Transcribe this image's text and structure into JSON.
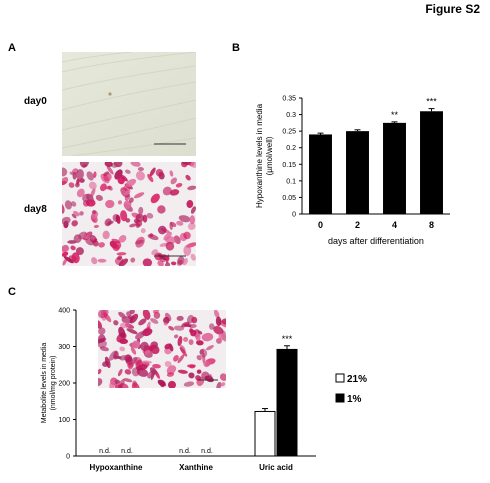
{
  "figure_title": "Figure S2",
  "panels": {
    "A": {
      "letter": "A",
      "images": [
        {
          "label": "day0",
          "description": "light microscopy of undifferentiated fibroblast-like cells"
        },
        {
          "label": "day8",
          "description": "oil red O stained differentiated adipocytes"
        }
      ]
    },
    "B": {
      "letter": "B"
    },
    "C": {
      "letter": "C",
      "inset": "oil red O stained cells"
    }
  },
  "chart_data": [
    {
      "panel": "B",
      "type": "bar",
      "categories": [
        "0",
        "2",
        "4",
        "8"
      ],
      "values": [
        0.24,
        0.25,
        0.275,
        0.31
      ],
      "errors": [
        0.004,
        0.004,
        0.003,
        0.008
      ],
      "annotations": [
        "",
        "",
        "**",
        "***"
      ],
      "xlabel": "days after differentiation",
      "ylabel": "Hypoxanthine levels in media\n(µmol/well)",
      "ylim": [
        0,
        0.35
      ],
      "yticks": [
        "0",
        "0.05",
        "0.1",
        "0.15",
        "0.2",
        "0.25",
        "0.3",
        "0.35"
      ],
      "bar_color": "#000000",
      "grid": false
    },
    {
      "panel": "C",
      "type": "bar",
      "categories": [
        "Hypoxanthine",
        "Xanthine",
        "Uric acid"
      ],
      "series": [
        {
          "name": "21%",
          "values": [
            null,
            null,
            122
          ],
          "errors": [
            0,
            0,
            8
          ],
          "color": "#ffffff"
        },
        {
          "name": "1%",
          "values": [
            null,
            null,
            292
          ],
          "errors": [
            0,
            0,
            10
          ],
          "color": "#000000"
        }
      ],
      "not_detected_label": "n.d.",
      "annotations": [
        "",
        "",
        "***"
      ],
      "ylabel": "Metabolite levels in media\n(nmol/mg protein)",
      "ylim": [
        0,
        400
      ],
      "yticks": [
        "0",
        "100",
        "200",
        "300",
        "400"
      ],
      "legend_position": "right",
      "grid": false
    }
  ]
}
